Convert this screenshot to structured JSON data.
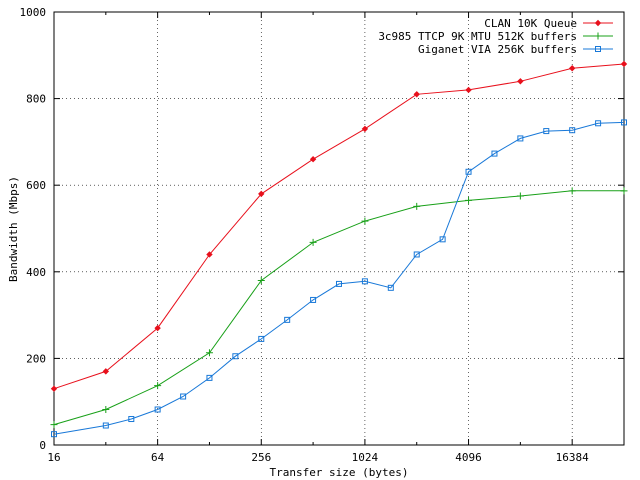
{
  "chart_data": {
    "type": "line",
    "title": "",
    "xlabel": "Transfer size (bytes)",
    "ylabel": "Bandwidth (Mbps)",
    "x_scale": "log2",
    "xlim": [
      16,
      32768
    ],
    "ylim": [
      0,
      1000
    ],
    "xticks": [
      16,
      64,
      256,
      1024,
      4096,
      16384
    ],
    "xtick_labels": [
      "16",
      "64",
      "256",
      "1024",
      "4096",
      "16384"
    ],
    "yticks": [
      0,
      200,
      400,
      600,
      800,
      1000
    ],
    "ytick_labels": [
      "0",
      "200",
      "400",
      "600",
      "800",
      "1000"
    ],
    "grid": "dotted",
    "legend_position": "top-right",
    "series": [
      {
        "name": "CLAN 10K Queue",
        "color": "#e8101c",
        "marker": "diamond",
        "points": [
          [
            16,
            130
          ],
          [
            32,
            170
          ],
          [
            64,
            270
          ],
          [
            128,
            440
          ],
          [
            256,
            580
          ],
          [
            512,
            660
          ],
          [
            1024,
            730
          ],
          [
            2048,
            810
          ],
          [
            4096,
            820
          ],
          [
            8192,
            840
          ],
          [
            16384,
            870
          ],
          [
            32768,
            880
          ]
        ]
      },
      {
        "name": "3c985 TTCP 9K MTU 512K buffers",
        "color": "#18a018",
        "marker": "plus",
        "points": [
          [
            16,
            47
          ],
          [
            32,
            82
          ],
          [
            64,
            137
          ],
          [
            128,
            213
          ],
          [
            256,
            380
          ],
          [
            512,
            468
          ],
          [
            1024,
            517
          ],
          [
            2048,
            551
          ],
          [
            4096,
            565
          ],
          [
            8192,
            575
          ],
          [
            16384,
            587
          ],
          [
            32768,
            587
          ]
        ]
      },
      {
        "name": "Giganet VIA 256K buffers",
        "color": "#1878d8",
        "marker": "square",
        "points": [
          [
            16,
            25
          ],
          [
            32,
            45
          ],
          [
            45,
            60
          ],
          [
            64,
            82
          ],
          [
            90,
            112
          ],
          [
            128,
            155
          ],
          [
            181,
            205
          ],
          [
            256,
            245
          ],
          [
            362,
            289
          ],
          [
            512,
            335
          ],
          [
            724,
            372
          ],
          [
            1024,
            378
          ],
          [
            1448,
            363
          ],
          [
            2048,
            440
          ],
          [
            2896,
            475
          ],
          [
            4096,
            631
          ],
          [
            5793,
            673
          ],
          [
            8192,
            708
          ],
          [
            11585,
            725
          ],
          [
            16384,
            727
          ],
          [
            23170,
            743
          ],
          [
            32768,
            745
          ]
        ]
      }
    ]
  }
}
